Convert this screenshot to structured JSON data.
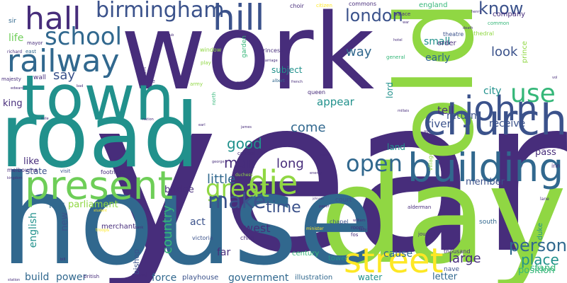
{
  "palette": {
    "background": "#ffffff",
    "purple": "#472d7b",
    "indigo": "#3b528b",
    "blue": "#31688e",
    "teal": "#21918c",
    "green": "#35b779",
    "lime": "#90d743",
    "yellow": "#fde725",
    "lightgreen": "#6ece58"
  },
  "words": [
    {
      "text": "year",
      "color": "#472d7b"
    },
    {
      "text": "work",
      "color": "#472d7b"
    },
    {
      "text": "old",
      "color": "#90d743"
    },
    {
      "text": "day",
      "color": "#90d743"
    },
    {
      "text": "house",
      "color": "#31688e"
    },
    {
      "text": "road",
      "color": "#21918c"
    },
    {
      "text": "town",
      "color": "#21918c"
    },
    {
      "text": "church",
      "color": "#3b528b"
    },
    {
      "text": "building",
      "color": "#31688e"
    },
    {
      "text": "present",
      "color": "#6ece58"
    },
    {
      "text": "street",
      "color": "#fde725"
    },
    {
      "text": "john",
      "color": "#3b528b"
    },
    {
      "text": "use",
      "color": "#35b779"
    },
    {
      "text": "railway",
      "color": "#31688e"
    },
    {
      "text": "hall",
      "color": "#472d7b"
    },
    {
      "text": "hill",
      "color": "#3b528b"
    },
    {
      "text": "die",
      "color": "#90d743"
    },
    {
      "text": "birmingham",
      "color": "#3b528b"
    },
    {
      "text": "school",
      "color": "#31688e"
    },
    {
      "text": "open",
      "color": "#31688e"
    },
    {
      "text": "great",
      "color": "#90d743"
    },
    {
      "text": "london",
      "color": "#3b528b"
    },
    {
      "text": "make",
      "color": "#3b528b"
    },
    {
      "text": "know",
      "color": "#3b528b"
    },
    {
      "text": "person",
      "color": "#31688e"
    },
    {
      "text": "time",
      "color": "#3b528b"
    },
    {
      "text": "good",
      "color": "#21918c"
    },
    {
      "text": "man",
      "color": "#472d7b"
    },
    {
      "text": "come",
      "color": "#31688e"
    },
    {
      "text": "look",
      "color": "#3b528b"
    },
    {
      "text": "place",
      "color": "#21918c"
    },
    {
      "text": "country",
      "color": "#35b779"
    },
    {
      "text": "way",
      "color": "#31688e"
    },
    {
      "text": "long",
      "color": "#472d7b"
    },
    {
      "text": "little",
      "color": "#31688e"
    },
    {
      "text": "large",
      "color": "#472d7b"
    },
    {
      "text": "say",
      "color": "#3b528b"
    },
    {
      "text": "life",
      "color": "#6ece58"
    },
    {
      "text": "tell",
      "color": "#472d7b"
    },
    {
      "text": "river",
      "color": "#3b528b"
    },
    {
      "text": "appear",
      "color": "#21918c"
    },
    {
      "text": "early",
      "color": "#31688e"
    },
    {
      "text": "small",
      "color": "#21918c"
    },
    {
      "text": "city",
      "color": "#21918c"
    },
    {
      "text": "return",
      "color": "#3b528b"
    },
    {
      "text": "receive",
      "color": "#3b528b"
    },
    {
      "text": "west",
      "color": "#472d7b"
    },
    {
      "text": "act",
      "color": "#3b528b"
    },
    {
      "text": "stand",
      "color": "#35b779"
    },
    {
      "text": "pass",
      "color": "#472d7b"
    },
    {
      "text": "member",
      "color": "#3b528b"
    },
    {
      "text": "parliament",
      "color": "#90d743"
    },
    {
      "text": "bridge",
      "color": "#472d7b"
    },
    {
      "text": "government",
      "color": "#31688e"
    },
    {
      "text": "build",
      "color": "#31688e"
    },
    {
      "text": "power",
      "color": "#31688e"
    },
    {
      "text": "force",
      "color": "#31688e"
    },
    {
      "text": "law",
      "color": "#31688e"
    },
    {
      "text": "new",
      "color": "#3b528b"
    },
    {
      "text": "english",
      "color": "#21918c"
    },
    {
      "text": "like",
      "color": "#472d7b"
    },
    {
      "text": "state",
      "color": "#3b528b"
    },
    {
      "text": "king",
      "color": "#472d7b"
    },
    {
      "text": "subject",
      "color": "#21918c"
    },
    {
      "text": "lord",
      "color": "#21918c"
    },
    {
      "text": "land",
      "color": "#21918c"
    },
    {
      "text": "cause",
      "color": "#31688e"
    },
    {
      "text": "water",
      "color": "#21918c"
    },
    {
      "text": "letter",
      "color": "#31688e"
    },
    {
      "text": "far",
      "color": "#472d7b"
    },
    {
      "text": "position",
      "color": "#35b779"
    },
    {
      "text": "century",
      "color": "#35b779"
    },
    {
      "text": "england",
      "color": "#35b779"
    },
    {
      "text": "company",
      "color": "#472d7b"
    },
    {
      "text": "order",
      "color": "#472d7b"
    },
    {
      "text": "theatre",
      "color": "#3b528b"
    },
    {
      "text": "illustration",
      "color": "#31688e"
    },
    {
      "text": "playhouse",
      "color": "#3b528b"
    },
    {
      "text": "merchant",
      "color": "#472d7b"
    },
    {
      "text": "court",
      "color": "#3b528b"
    },
    {
      "text": "tower",
      "color": "#21918c"
    },
    {
      "text": "bishop",
      "color": "#3b528b"
    },
    {
      "text": "royal",
      "color": "#472d7b"
    },
    {
      "text": "british",
      "color": "#472d7b"
    },
    {
      "text": "duke",
      "color": "#21918c"
    },
    {
      "text": "south",
      "color": "#31688e"
    },
    {
      "text": "thousand",
      "color": "#472d7b"
    },
    {
      "text": "nave",
      "color": "#3b528b"
    },
    {
      "text": "choir",
      "color": "#472d7b"
    },
    {
      "text": "commons",
      "color": "#472d7b"
    },
    {
      "text": "palace",
      "color": "#472d7b"
    },
    {
      "text": "sir",
      "color": "#31688e"
    },
    {
      "text": "wall",
      "color": "#472d7b"
    },
    {
      "text": "mayor",
      "color": "#472d7b"
    },
    {
      "text": "east",
      "color": "#31688e"
    },
    {
      "text": "princess",
      "color": "#472d7b"
    },
    {
      "text": "queen",
      "color": "#472d7b"
    },
    {
      "text": "albert",
      "color": "#31688e"
    },
    {
      "text": "garden",
      "color": "#35b779"
    },
    {
      "text": "victoria",
      "color": "#3b528b"
    },
    {
      "text": "child",
      "color": "#472d7b"
    },
    {
      "text": "journal",
      "color": "#472d7b"
    },
    {
      "text": "alderman",
      "color": "#472d7b"
    },
    {
      "text": "fos",
      "color": "#472d7b"
    },
    {
      "text": "room",
      "color": "#472d7b"
    },
    {
      "text": "prince",
      "color": "#90d743"
    },
    {
      "text": "general",
      "color": "#35b779"
    },
    {
      "text": "cathedral",
      "color": "#90d743"
    },
    {
      "text": "common",
      "color": "#35b779"
    },
    {
      "text": "castle",
      "color": "#472d7b"
    },
    {
      "text": "window",
      "color": "#90d743"
    },
    {
      "text": "play",
      "color": "#90d743"
    },
    {
      "text": "north",
      "color": "#35b779"
    },
    {
      "text": "army",
      "color": "#90d743"
    },
    {
      "text": "melbourne",
      "color": "#472d7b"
    },
    {
      "text": "visit",
      "color": "#3b528b"
    },
    {
      "text": "footnote",
      "color": "#472d7b"
    },
    {
      "text": "kingdom",
      "color": "#472d7b"
    },
    {
      "text": "council",
      "color": "#472d7b"
    },
    {
      "text": "duchess",
      "color": "#90d743"
    },
    {
      "text": "majesty",
      "color": "#472d7b"
    },
    {
      "text": "richard",
      "color": "#472d7b"
    },
    {
      "text": "edward",
      "color": "#472d7b"
    },
    {
      "text": "inn",
      "color": "#472d7b"
    },
    {
      "text": "lane",
      "color": "#472d7b"
    },
    {
      "text": "henry",
      "color": "#472d7b"
    },
    {
      "text": "death",
      "color": "#472d7b"
    },
    {
      "text": "hotel",
      "color": "#472d7b"
    },
    {
      "text": "war",
      "color": "#472d7b"
    },
    {
      "text": "club",
      "color": "#472d7b"
    },
    {
      "text": "citizen",
      "color": "#fde725"
    },
    {
      "text": "chapel",
      "color": "#3b528b"
    },
    {
      "text": "nation",
      "color": "#472d7b"
    },
    {
      "text": "walpole",
      "color": "#472d7b"
    },
    {
      "text": "william",
      "color": "#472d7b"
    },
    {
      "text": "lady",
      "color": "#472d7b"
    },
    {
      "text": "johnson",
      "color": "#472d7b"
    },
    {
      "text": "french",
      "color": "#472d7b"
    },
    {
      "text": "station",
      "color": "#472d7b"
    },
    {
      "text": "troops",
      "color": "#fde725"
    },
    {
      "text": "minister",
      "color": "#fde725"
    },
    {
      "text": "student",
      "color": "#fde725"
    },
    {
      "text": "enemy",
      "color": "#472d7b"
    },
    {
      "text": "baron",
      "color": "#472d7b"
    },
    {
      "text": "village",
      "color": "#90d743"
    },
    {
      "text": "millais",
      "color": "#472d7b"
    },
    {
      "text": "george",
      "color": "#472d7b"
    },
    {
      "text": "bill",
      "color": "#472d7b"
    },
    {
      "text": "vol",
      "color": "#472d7b"
    },
    {
      "text": "paper",
      "color": "#472d7b"
    },
    {
      "text": "james",
      "color": "#472d7b"
    },
    {
      "text": "marriage",
      "color": "#472d7b"
    },
    {
      "text": "reform",
      "color": "#472d7b"
    },
    {
      "text": "bank",
      "color": "#472d7b"
    },
    {
      "text": "ago",
      "color": "#472d7b"
    },
    {
      "text": "earl",
      "color": "#472d7b"
    },
    {
      "text": "mile",
      "color": "#472d7b"
    },
    {
      "text": "bad",
      "color": "#472d7b"
    }
  ]
}
